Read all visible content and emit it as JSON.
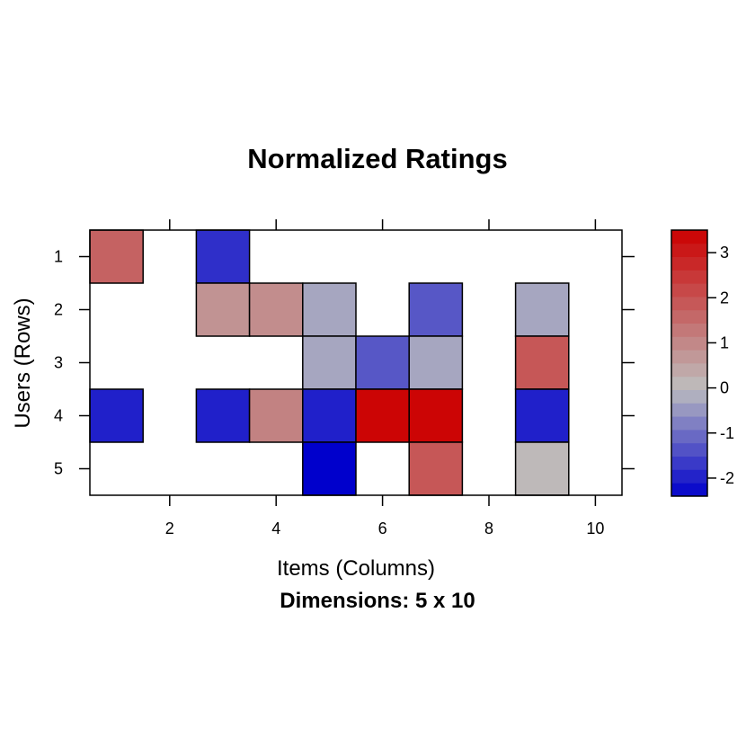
{
  "chart_data": {
    "type": "heatmap",
    "title": "Normalized Ratings",
    "xlabel": "Items (Columns)",
    "ylabel": "Users (Rows)",
    "sublabel": "Dimensions: 5 x 10",
    "n_rows": 5,
    "n_cols": 10,
    "x_ticks": [
      "2",
      "4",
      "6",
      "8",
      "10"
    ],
    "y_ticks": [
      "1",
      "2",
      "3",
      "4",
      "5"
    ],
    "colorbar_ticks": [
      "-2",
      "-1",
      "0",
      "1",
      "2",
      "3"
    ],
    "zlim": [
      -2.4,
      3.5
    ],
    "color_low": "#0000CC",
    "color_mid": "#BEBEBE",
    "color_high": "#CC0000",
    "cells": [
      {
        "row": 1,
        "col": 1,
        "value": 1.7
      },
      {
        "row": 1,
        "col": 3,
        "value": -1.8
      },
      {
        "row": 2,
        "col": 3,
        "value": 0.8
      },
      {
        "row": 2,
        "col": 4,
        "value": 0.9
      },
      {
        "row": 2,
        "col": 5,
        "value": -0.3
      },
      {
        "row": 2,
        "col": 7,
        "value": -1.3
      },
      {
        "row": 2,
        "col": 9,
        "value": -0.3
      },
      {
        "row": 3,
        "col": 5,
        "value": -0.3
      },
      {
        "row": 3,
        "col": 6,
        "value": -1.3
      },
      {
        "row": 3,
        "col": 7,
        "value": -0.3
      },
      {
        "row": 3,
        "col": 9,
        "value": 1.9
      },
      {
        "row": 4,
        "col": 1,
        "value": -2.0
      },
      {
        "row": 4,
        "col": 3,
        "value": -2.0
      },
      {
        "row": 4,
        "col": 4,
        "value": 1.1
      },
      {
        "row": 4,
        "col": 5,
        "value": -2.0
      },
      {
        "row": 4,
        "col": 6,
        "value": 3.4
      },
      {
        "row": 4,
        "col": 7,
        "value": 3.4
      },
      {
        "row": 4,
        "col": 9,
        "value": -2.0
      },
      {
        "row": 5,
        "col": 5,
        "value": -2.4
      },
      {
        "row": 5,
        "col": 7,
        "value": 1.9
      },
      {
        "row": 5,
        "col": 9,
        "value": 0.1
      }
    ]
  }
}
